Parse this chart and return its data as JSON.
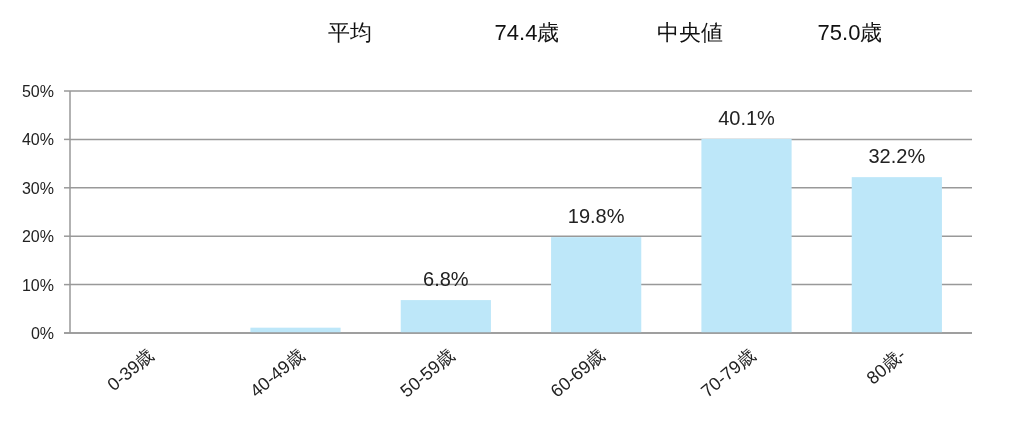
{
  "chart_data": {
    "type": "bar",
    "annotations": [
      "平均",
      "74.4歳",
      "中央値",
      "75.0歳"
    ],
    "categories": [
      "0-39歳",
      "40-49歳",
      "50-59歳",
      "60-69歳",
      "70-79歳",
      "80歳-"
    ],
    "values": [
      0,
      1.1,
      6.8,
      19.8,
      40.1,
      32.2
    ],
    "value_labels": [
      null,
      null,
      "6.8%",
      "19.8%",
      "40.1%",
      "32.2%"
    ],
    "color": "#bde7f9",
    "ylim": [
      0,
      50
    ],
    "yticks": [
      {
        "value": 0,
        "label": "0%"
      },
      {
        "value": 10,
        "label": "10%"
      },
      {
        "value": 20,
        "label": "20%"
      },
      {
        "value": 30,
        "label": "30%"
      },
      {
        "value": 40,
        "label": "40%"
      },
      {
        "value": 50,
        "label": "50%"
      }
    ],
    "grid": "y"
  }
}
